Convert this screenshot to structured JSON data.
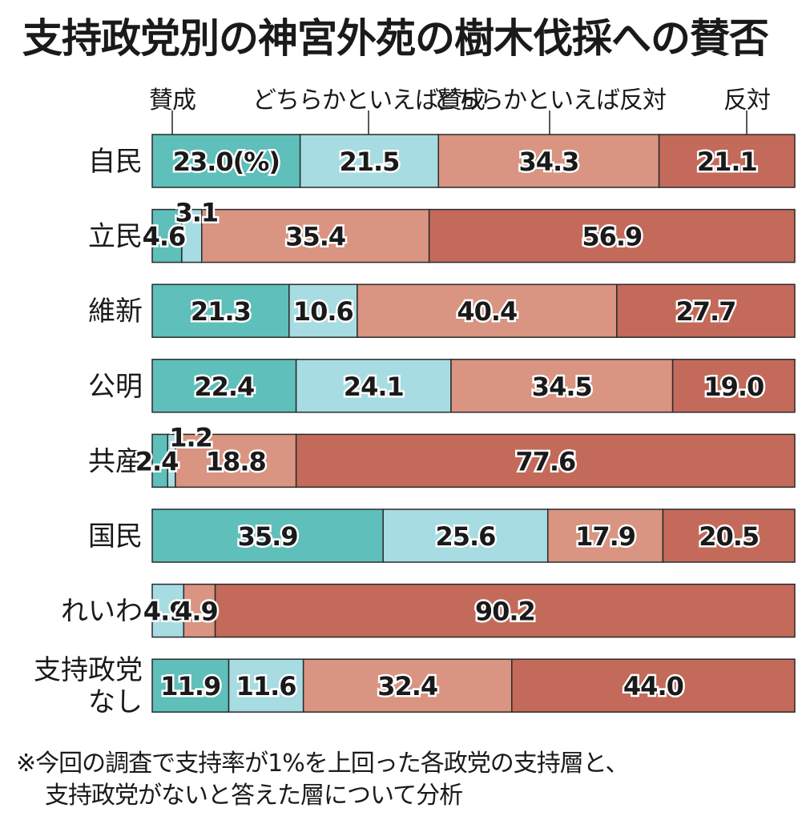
{
  "chart_data": {
    "type": "bar",
    "orientation": "horizontal-stacked-100",
    "title": "支持政党別の神宮外苑の樹木伐採への賛否",
    "unit_label": "(%)",
    "series_names": [
      "賛成",
      "どちらかといえば賛成",
      "どちらかといえば反対",
      "反対"
    ],
    "series_colors": [
      "#5fbfba",
      "#a6dce2",
      "#d99482",
      "#c46a5a"
    ],
    "categories": [
      {
        "label": [
          "自民"
        ],
        "values": [
          23.0,
          21.5,
          34.3,
          21.1
        ]
      },
      {
        "label": [
          "立民"
        ],
        "values": [
          4.6,
          3.1,
          35.4,
          56.9
        ]
      },
      {
        "label": [
          "維新"
        ],
        "values": [
          21.3,
          10.6,
          40.4,
          27.7
        ]
      },
      {
        "label": [
          "公明"
        ],
        "values": [
          22.4,
          24.1,
          34.5,
          19.0
        ]
      },
      {
        "label": [
          "共産"
        ],
        "values": [
          2.4,
          1.2,
          18.8,
          77.6
        ]
      },
      {
        "label": [
          "国民"
        ],
        "values": [
          35.9,
          25.6,
          17.9,
          20.5
        ]
      },
      {
        "label": [
          "れいわ"
        ],
        "values": [
          0,
          4.9,
          4.9,
          90.2
        ]
      },
      {
        "label": [
          "支持政党",
          "なし"
        ],
        "values": [
          11.9,
          11.6,
          32.4,
          44.0
        ]
      }
    ],
    "xlim": [
      0,
      100
    ],
    "legend_placement": "top",
    "notes": [
      "※今回の調査で支持率が1%を上回った各政党の支持層と、",
      "支持政党がないと答えた層について分析"
    ]
  }
}
